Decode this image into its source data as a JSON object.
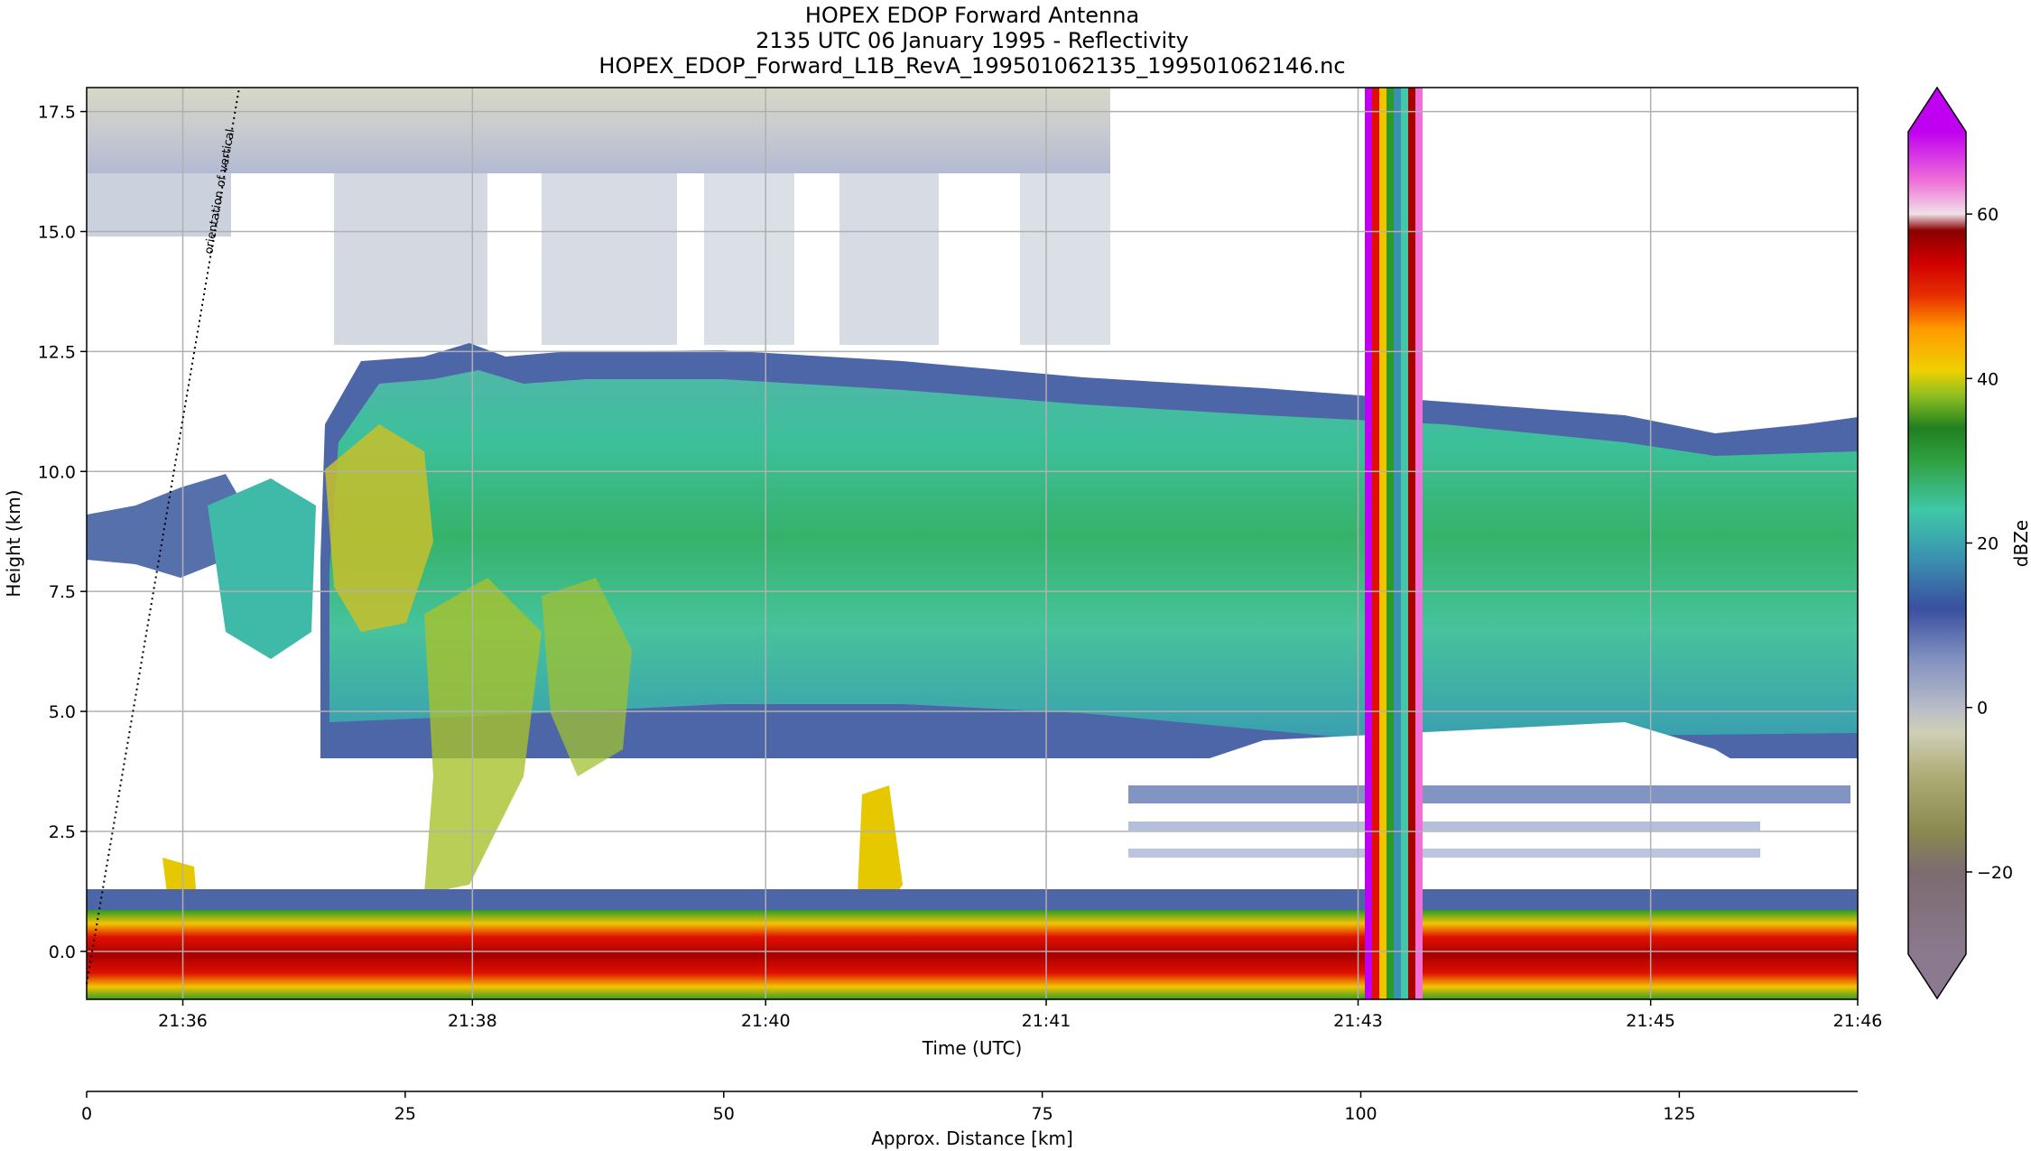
{
  "chart_data": {
    "type": "heatmap",
    "title": [
      "HOPEX EDOP Forward Antenna",
      "2135 UTC 06 January 1995 - Reflectivity",
      "HOPEX_EDOP_Forward_L1B_RevA_199501062135_199501062146.nc"
    ],
    "xlabel": "Time (UTC)",
    "ylabel": "Height (km)",
    "x_ticks": [
      "21:36",
      "21:38",
      "21:40",
      "21:41",
      "21:43",
      "21:45",
      "21:46"
    ],
    "y_ticks": [
      "0.0",
      "2.5",
      "5.0",
      "7.5",
      "10.0",
      "12.5",
      "15.0",
      "17.5"
    ],
    "y_tick_values": [
      0,
      2.5,
      5,
      7.5,
      10,
      12.5,
      15,
      17.5
    ],
    "ylim": [
      -1,
      18
    ],
    "grid": true,
    "annotation": "orientation of vertical",
    "secondary_x": {
      "label": "Approx. Distance [km]",
      "ticks": [
        0,
        25,
        50,
        75,
        100,
        125
      ],
      "xlim": [
        0,
        139
      ]
    },
    "colorbar": {
      "label": "dBZe",
      "ticks": [
        -20,
        0,
        20,
        40,
        60
      ],
      "range": [
        -30,
        70
      ],
      "extend": "both"
    },
    "features": {
      "surface_band_height_km": [
        -0.6,
        0.7
      ],
      "cloud_top_height_km": 11,
      "noise_column_time": "21:43"
    }
  }
}
